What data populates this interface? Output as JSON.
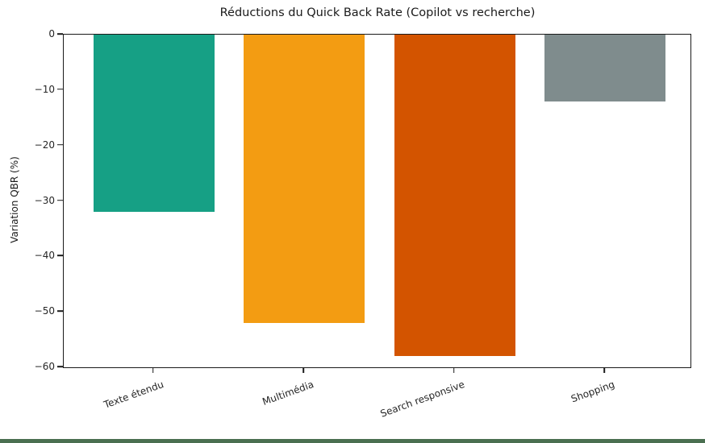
{
  "window": {
    "background_color": "#ffffff",
    "bottom_strip_color": "#4a6f50"
  },
  "chart_data": {
    "type": "bar",
    "title": "Réductions du Quick Back Rate (Copilot vs recherche)",
    "ylabel": "Variation QBR (%)",
    "xlabel": "",
    "categories": [
      "Texte étendu",
      "Multimédia",
      "Search responsive",
      "Shopping"
    ],
    "values": [
      -32,
      -52,
      -58,
      -12
    ],
    "bar_colors": [
      "#16a085",
      "#f39c12",
      "#d35400",
      "#7f8c8d"
    ],
    "ylim": [
      -60,
      0
    ],
    "yticks": [
      0,
      -10,
      -20,
      -30,
      -40,
      -50,
      -60
    ],
    "ytick_labels": [
      "0",
      "−10",
      "−20",
      "−30",
      "−40",
      "−50",
      "−60"
    ],
    "grid": false,
    "legend_position": "none",
    "x_label_rotation_deg": 20,
    "axis_color": "#1a1a1a"
  }
}
